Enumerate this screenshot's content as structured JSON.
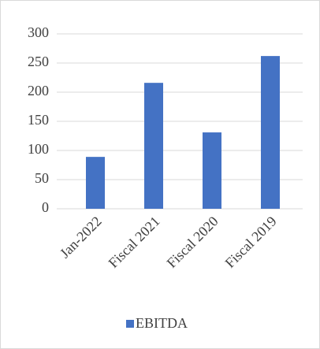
{
  "chart_data": {
    "type": "bar",
    "categories": [
      "Jan-2022",
      "Fiscal 2021",
      "Fiscal 2020",
      "Fiscal 2019"
    ],
    "series": [
      {
        "name": "EBITDA",
        "color": "#4472c4",
        "values": [
          89,
          216,
          131,
          262
        ]
      }
    ],
    "ylim": [
      0,
      300
    ],
    "yticks": [
      0,
      50,
      100,
      150,
      200,
      250,
      300
    ],
    "grid": true,
    "legend": "bottom"
  }
}
